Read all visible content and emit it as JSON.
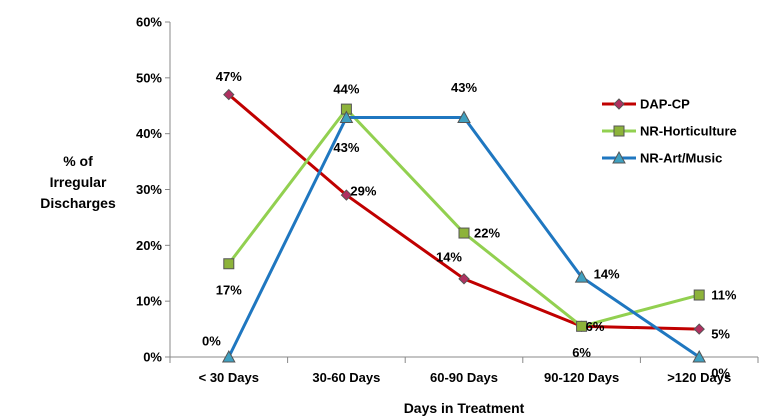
{
  "chart_data": {
    "type": "line",
    "title": "",
    "xlabel": "Days in Treatment",
    "ylabel_lines": [
      "% of",
      "Irregular",
      "Discharges"
    ],
    "categories": [
      "< 30 Days",
      "30-60 Days",
      "60-90 Days",
      "90-120 Days",
      ">120 Days"
    ],
    "yticks": [
      "0%",
      "10%",
      "20%",
      "30%",
      "40%",
      "50%",
      "60%"
    ],
    "ylim": [
      0,
      60
    ],
    "grid": false,
    "legend_position": "right",
    "series": [
      {
        "name": "DAP-CP",
        "color": "#c00000",
        "marker": "diamond",
        "marker_fill": "#b03060",
        "values": [
          47,
          29,
          14,
          5.5,
          5
        ],
        "labels": [
          "47%",
          "29%",
          "14%",
          "6%",
          "5%"
        ]
      },
      {
        "name": "NR-Horticulture",
        "color": "#92d050",
        "marker": "square",
        "marker_fill": "#8db33a",
        "values": [
          16.7,
          44.4,
          22.2,
          5.5,
          11.1
        ],
        "labels": [
          "17%",
          "44%",
          "22%",
          "6%",
          "11%"
        ]
      },
      {
        "name": "NR-Art/Music",
        "color": "#1f77c0",
        "marker": "triangle",
        "marker_fill": "#3fa0c0",
        "values": [
          0,
          42.9,
          42.9,
          14.3,
          0
        ],
        "labels": [
          "0%",
          "43%",
          "43%",
          "14%",
          "0%"
        ]
      }
    ]
  }
}
